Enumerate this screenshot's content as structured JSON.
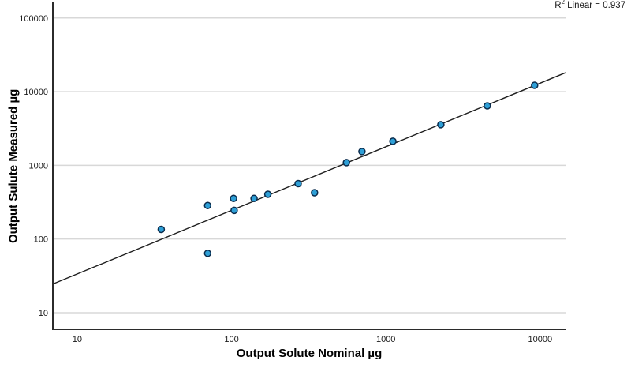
{
  "chart_data": {
    "type": "scatter",
    "title": "",
    "xlabel": "Output Solute Nominal µg",
    "ylabel": "Output Sulute Measured µg",
    "x_scale": "log",
    "y_scale": "log",
    "grid": "horizontal",
    "legend": "none",
    "x_ticks": [
      10,
      100,
      1000,
      10000
    ],
    "y_ticks": [
      10,
      100,
      1000,
      10000,
      100000
    ],
    "x_domain": [
      6.95,
      14600
    ],
    "y_domain": [
      5.95,
      163000
    ],
    "points": [
      [
        35,
        135
      ],
      [
        70,
        285
      ],
      [
        70,
        64
      ],
      [
        103,
        355
      ],
      [
        104,
        245
      ],
      [
        140,
        355
      ],
      [
        172,
        405
      ],
      [
        270,
        565
      ],
      [
        345,
        425
      ],
      [
        555,
        1090
      ],
      [
        700,
        1540
      ],
      [
        1110,
        2120
      ],
      [
        2270,
        3560
      ],
      [
        4540,
        6430
      ],
      [
        9200,
        12200
      ]
    ],
    "fit_line": {
      "x1": 6.95,
      "y1": 24.5,
      "x2": 14600,
      "y2": 18100,
      "r2": 0.937
    },
    "colors": {
      "marker_fill": "#2E9FD6",
      "marker_stroke": "#0A2C4D",
      "grid": "#D8D8D8",
      "axis": "#2B2B2B",
      "fit_line": "#1F1F1F",
      "text": "#1A1A1A",
      "background": "#FFFFFF"
    }
  },
  "annotation": {
    "r": "R",
    "sup": "2",
    "rest": " Linear = 0.937"
  }
}
